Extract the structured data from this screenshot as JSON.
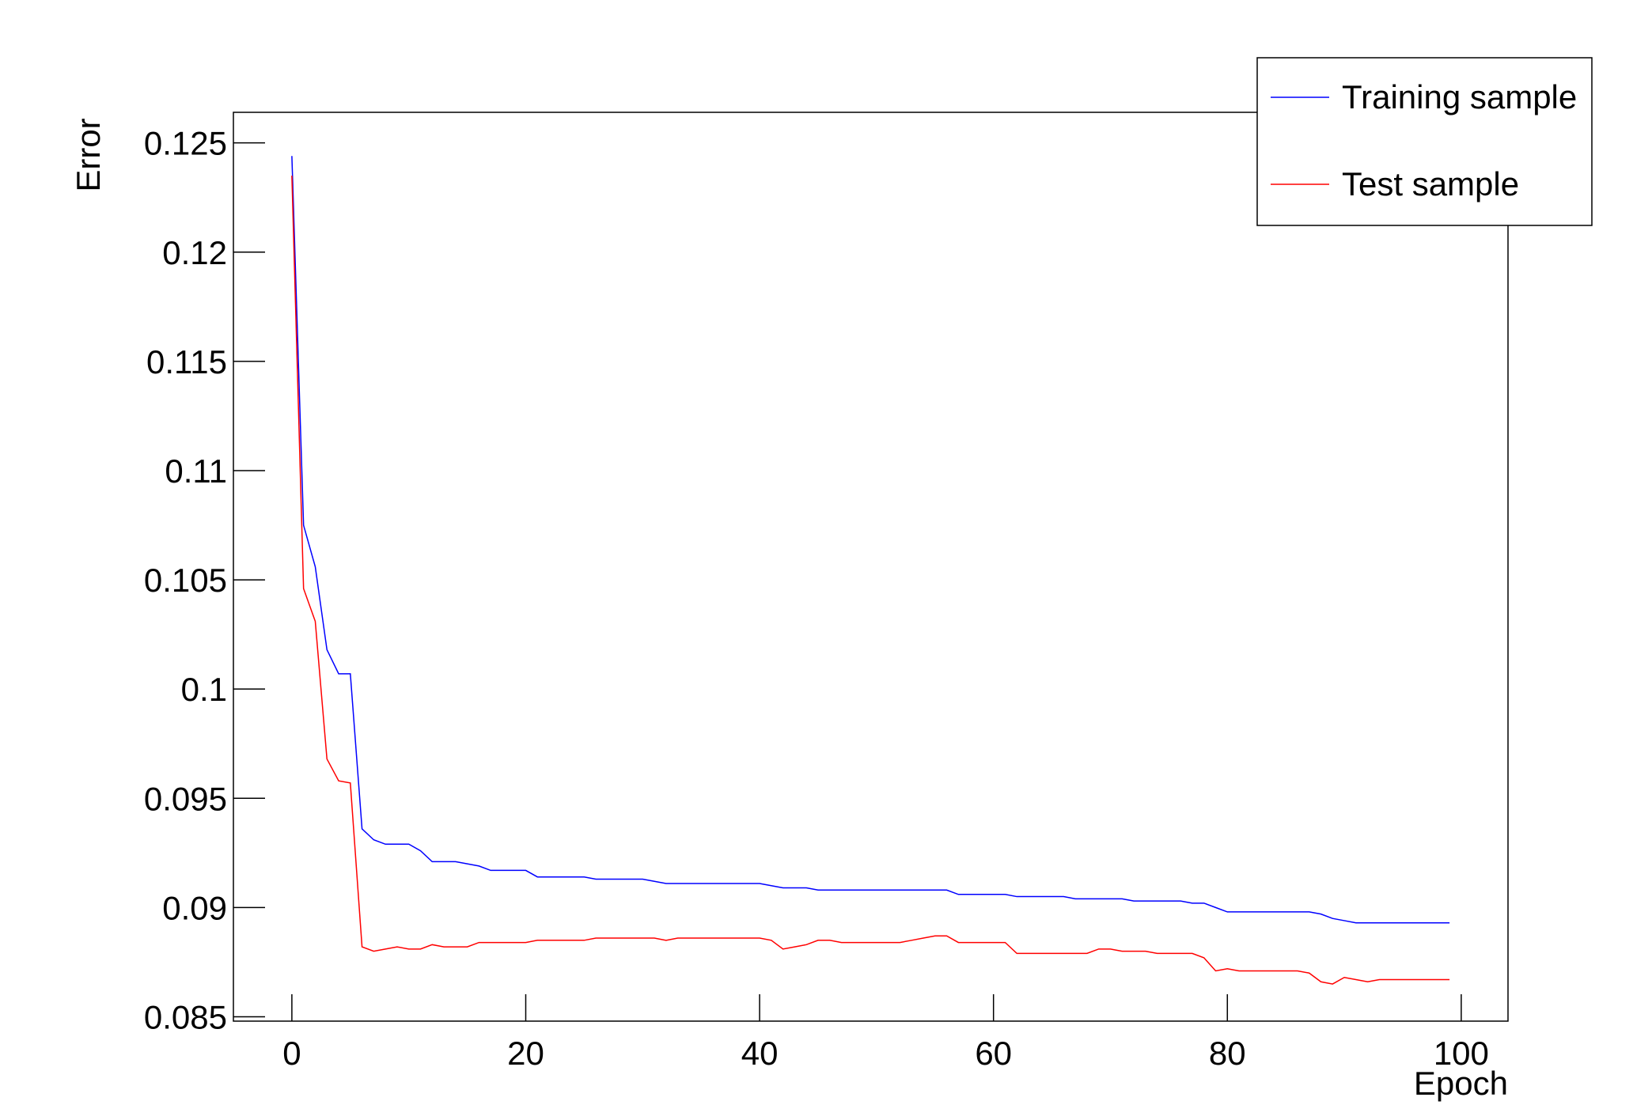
{
  "chart_data": {
    "type": "line",
    "x_label": "Epoch",
    "y_label": "Error",
    "x": [
      0,
      1,
      2,
      3,
      4,
      5,
      6,
      7,
      8,
      9,
      10,
      11,
      12,
      13,
      14,
      15,
      16,
      17,
      18,
      19,
      20,
      21,
      22,
      23,
      24,
      25,
      26,
      27,
      28,
      29,
      30,
      31,
      32,
      33,
      34,
      35,
      36,
      37,
      38,
      39,
      40,
      41,
      42,
      43,
      44,
      45,
      46,
      47,
      48,
      49,
      50,
      51,
      52,
      53,
      54,
      55,
      56,
      57,
      58,
      59,
      60,
      61,
      62,
      63,
      64,
      65,
      66,
      67,
      68,
      69,
      70,
      71,
      72,
      73,
      74,
      75,
      76,
      77,
      78,
      79,
      80,
      81,
      82,
      83,
      84,
      85,
      86,
      87,
      88,
      89,
      90,
      91,
      92,
      93,
      94,
      95,
      96,
      97,
      98,
      99
    ],
    "series": [
      {
        "name": "Training sample",
        "color": "#0000ff",
        "values": [
          0.1244,
          0.1075,
          0.1056,
          0.1018,
          0.1007,
          0.1007,
          0.0936,
          0.0931,
          0.0929,
          0.0929,
          0.0929,
          0.0926,
          0.0921,
          0.0921,
          0.0921,
          0.092,
          0.0919,
          0.0917,
          0.0917,
          0.0917,
          0.0917,
          0.0914,
          0.0914,
          0.0914,
          0.0914,
          0.0914,
          0.0913,
          0.0913,
          0.0913,
          0.0913,
          0.0913,
          0.0912,
          0.0911,
          0.0911,
          0.0911,
          0.0911,
          0.0911,
          0.0911,
          0.0911,
          0.0911,
          0.0911,
          0.091,
          0.0909,
          0.0909,
          0.0909,
          0.0908,
          0.0908,
          0.0908,
          0.0908,
          0.0908,
          0.0908,
          0.0908,
          0.0908,
          0.0908,
          0.0908,
          0.0908,
          0.0908,
          0.0906,
          0.0906,
          0.0906,
          0.0906,
          0.0906,
          0.0905,
          0.0905,
          0.0905,
          0.0905,
          0.0905,
          0.0904,
          0.0904,
          0.0904,
          0.0904,
          0.0904,
          0.0903,
          0.0903,
          0.0903,
          0.0903,
          0.0903,
          0.0902,
          0.0902,
          0.09,
          0.0898,
          0.0898,
          0.0898,
          0.0898,
          0.0898,
          0.0898,
          0.0898,
          0.0898,
          0.0897,
          0.0895,
          0.0894,
          0.0893,
          0.0893,
          0.0893,
          0.0893,
          0.0893,
          0.0893,
          0.0893,
          0.0893,
          0.0893
        ]
      },
      {
        "name": "Test sample",
        "color": "#ff0000",
        "values": [
          0.1235,
          0.1046,
          0.1031,
          0.0968,
          0.0958,
          0.0957,
          0.0882,
          0.088,
          0.0881,
          0.0882,
          0.0881,
          0.0881,
          0.0883,
          0.0882,
          0.0882,
          0.0882,
          0.0884,
          0.0884,
          0.0884,
          0.0884,
          0.0884,
          0.0885,
          0.0885,
          0.0885,
          0.0885,
          0.0885,
          0.0886,
          0.0886,
          0.0886,
          0.0886,
          0.0886,
          0.0886,
          0.0885,
          0.0886,
          0.0886,
          0.0886,
          0.0886,
          0.0886,
          0.0886,
          0.0886,
          0.0886,
          0.0885,
          0.0881,
          0.0882,
          0.0883,
          0.0885,
          0.0885,
          0.0884,
          0.0884,
          0.0884,
          0.0884,
          0.0884,
          0.0884,
          0.0885,
          0.0886,
          0.0887,
          0.0887,
          0.0884,
          0.0884,
          0.0884,
          0.0884,
          0.0884,
          0.0879,
          0.0879,
          0.0879,
          0.0879,
          0.0879,
          0.0879,
          0.0879,
          0.0881,
          0.0881,
          0.088,
          0.088,
          0.088,
          0.0879,
          0.0879,
          0.0879,
          0.0879,
          0.0877,
          0.0871,
          0.0872,
          0.0871,
          0.0871,
          0.0871,
          0.0871,
          0.0871,
          0.0871,
          0.087,
          0.0866,
          0.0865,
          0.0868,
          0.0867,
          0.0866,
          0.0867,
          0.0867,
          0.0867,
          0.0867,
          0.0867,
          0.0867,
          0.0867
        ]
      }
    ],
    "xlim": [
      -5,
      104
    ],
    "xticks": [
      0,
      20,
      40,
      60,
      80,
      100
    ],
    "ylim": [
      0.0848,
      0.1264
    ],
    "yticks": [
      0.085,
      0.09,
      0.095,
      0.1,
      0.105,
      0.11,
      0.115,
      0.12,
      0.125
    ],
    "grid": false,
    "legend": "top-right"
  }
}
